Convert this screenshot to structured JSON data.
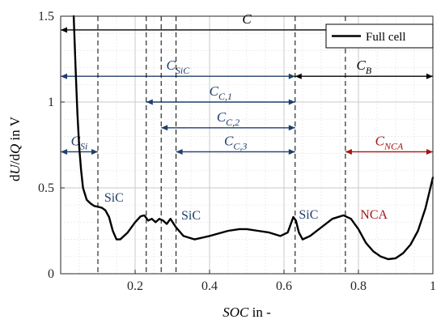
{
  "chart_data": {
    "type": "line",
    "xlabel": {
      "main": "SOC",
      "suffix": " in -"
    },
    "ylabel": {
      "p1": "d",
      "p2": "U",
      "p3": "/d",
      "p4": "Q",
      "p5": " in V"
    },
    "xlim": [
      0,
      1
    ],
    "ylim": [
      0,
      1.5
    ],
    "xticks": [
      0.2,
      0.4,
      0.6,
      0.8,
      1
    ],
    "xtick_labels": [
      "0.2",
      "0.4",
      "0.6",
      "0.8",
      "1"
    ],
    "yticks": [
      0,
      0.5,
      1,
      1.5
    ],
    "ytick_labels": [
      "0",
      "0.5",
      "1",
      "1.5"
    ],
    "grid": true,
    "legend": {
      "position": "top-right",
      "entries": [
        "Full cell"
      ]
    },
    "series": [
      {
        "name": "Full cell",
        "color": "#000000",
        "x": [
          0.035,
          0.04,
          0.045,
          0.05,
          0.055,
          0.06,
          0.07,
          0.08,
          0.09,
          0.1,
          0.11,
          0.12,
          0.13,
          0.14,
          0.15,
          0.16,
          0.18,
          0.2,
          0.215,
          0.225,
          0.235,
          0.245,
          0.255,
          0.265,
          0.275,
          0.285,
          0.295,
          0.31,
          0.33,
          0.36,
          0.4,
          0.45,
          0.48,
          0.5,
          0.53,
          0.56,
          0.59,
          0.61,
          0.625,
          0.632,
          0.64,
          0.65,
          0.67,
          0.7,
          0.73,
          0.76,
          0.78,
          0.8,
          0.82,
          0.84,
          0.86,
          0.88,
          0.9,
          0.92,
          0.94,
          0.96,
          0.98,
          0.99,
          1.0
        ],
        "y": [
          1.5,
          1.2,
          0.93,
          0.73,
          0.6,
          0.5,
          0.43,
          0.41,
          0.395,
          0.39,
          0.385,
          0.37,
          0.33,
          0.25,
          0.2,
          0.2,
          0.24,
          0.3,
          0.335,
          0.34,
          0.31,
          0.32,
          0.3,
          0.32,
          0.31,
          0.29,
          0.32,
          0.27,
          0.22,
          0.2,
          0.22,
          0.25,
          0.26,
          0.26,
          0.25,
          0.24,
          0.22,
          0.24,
          0.33,
          0.31,
          0.24,
          0.2,
          0.22,
          0.27,
          0.32,
          0.34,
          0.32,
          0.26,
          0.18,
          0.13,
          0.1,
          0.085,
          0.09,
          0.12,
          0.17,
          0.25,
          0.38,
          0.47,
          0.56
        ]
      }
    ],
    "vlines": [
      0.1,
      0.23,
      0.27,
      0.31,
      0.63,
      0.765
    ],
    "spans": [
      {
        "key": "C",
        "label": "C",
        "sub": "",
        "x1": 0,
        "x2": 1,
        "y": 1.42,
        "color": "#000000"
      },
      {
        "key": "CSiC",
        "label": "C",
        "sub": "SiC",
        "x1": 0,
        "x2": 0.63,
        "y": 1.15,
        "color": "#1f3f6b"
      },
      {
        "key": "CB",
        "label": "C",
        "sub": "B",
        "x1": 0.63,
        "x2": 1,
        "y": 1.15,
        "color": "#000000"
      },
      {
        "key": "CC1",
        "label": "C",
        "sub": "C,1",
        "x1": 0.23,
        "x2": 0.63,
        "y": 1.0,
        "color": "#1f3f6b"
      },
      {
        "key": "CC2",
        "label": "C",
        "sub": "C,2",
        "x1": 0.27,
        "x2": 0.63,
        "y": 0.85,
        "color": "#1f3f6b"
      },
      {
        "key": "CC3",
        "label": "C",
        "sub": "C,3",
        "x1": 0.31,
        "x2": 0.63,
        "y": 0.71,
        "color": "#1f3f6b"
      },
      {
        "key": "CSi",
        "label": "C",
        "sub": "Si",
        "x1": 0,
        "x2": 0.1,
        "y": 0.71,
        "color": "#1f3f6b"
      },
      {
        "key": "CNCA",
        "label": "C",
        "sub": "NCA",
        "x1": 0.765,
        "x2": 1,
        "y": 0.71,
        "color": "#a31515"
      }
    ],
    "annotations": [
      {
        "key": "sic1",
        "text": "SiC",
        "x": 0.117,
        "y": 0.42,
        "color": "#1f3f6b"
      },
      {
        "key": "sic2",
        "text": "SiC",
        "x": 0.324,
        "y": 0.315,
        "color": "#1f3f6b"
      },
      {
        "key": "sic3",
        "text": "SiC",
        "x": 0.64,
        "y": 0.32,
        "color": "#1f3f6b"
      },
      {
        "key": "nca",
        "text": "NCA",
        "x": 0.805,
        "y": 0.32,
        "color": "#a31515"
      }
    ]
  }
}
